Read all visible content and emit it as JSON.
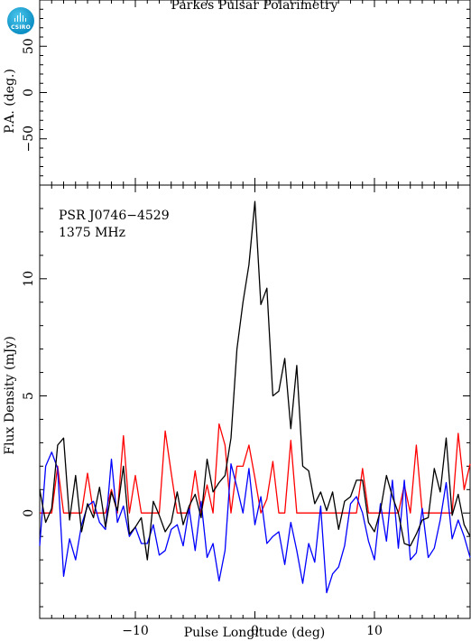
{
  "header": {
    "title": "Parkes Pulsar Polarimetry",
    "logo_text": "CSIRO"
  },
  "colors": {
    "total_intensity": "#000000",
    "linear_pol": "#ff0000",
    "circular_pol": "#0000ff"
  },
  "chart_data": [
    {
      "type": "scatter",
      "panel": "position-angle",
      "ylabel": "P.A. (deg.)",
      "xlim": [
        -18,
        18
      ],
      "ylim": [
        -100,
        100
      ],
      "yticks": [
        -50,
        0,
        50
      ],
      "points": []
    },
    {
      "type": "line",
      "panel": "flux-density",
      "annotations": [
        "PSR J0746−4529",
        "1375 MHz"
      ],
      "xlabel": "Pulse Longitude (deg)",
      "ylabel": "Flux Density (mJy)",
      "xlim": [
        -18,
        18
      ],
      "ylim": [
        -4.5,
        14
      ],
      "xticks": [
        -10,
        0,
        10
      ],
      "yticks": [
        0,
        5,
        10
      ],
      "series": [
        {
          "color": "#000000",
          "x": [
            -18,
            -17.5,
            -17,
            -16.5,
            -16,
            -15.5,
            -15,
            -14.5,
            -14,
            -13.5,
            -13,
            -12.5,
            -12,
            -11.5,
            -11,
            -10.5,
            -10,
            -9.5,
            -9,
            -8.5,
            -8,
            -7.5,
            -7,
            -6.5,
            -6,
            -5.5,
            -5,
            -4.5,
            -4,
            -3.5,
            -3,
            -2.5,
            -2,
            -1.5,
            -1,
            -0.5,
            0,
            0.5,
            1,
            1.5,
            2,
            2.5,
            3,
            3.5,
            4,
            4.5,
            5,
            5.5,
            6,
            6.5,
            7,
            7.5,
            8,
            8.5,
            9,
            9.5,
            10,
            10.5,
            11,
            11.5,
            12,
            12.5,
            13,
            13.5,
            14,
            14.5,
            15,
            15.5,
            16,
            16.5,
            17,
            17.5,
            18
          ],
          "y": [
            1.0,
            -0.4,
            0.2,
            2.9,
            3.2,
            -0.3,
            1.6,
            -0.8,
            0.4,
            -0.2,
            1.1,
            -0.6,
            0.9,
            0.1,
            2.0,
            -0.9,
            -0.6,
            -0.2,
            -2.0,
            0.5,
            -0.1,
            -0.8,
            -0.4,
            0.9,
            -0.5,
            0.3,
            0.8,
            -0.2,
            2.3,
            0.9,
            1.3,
            1.6,
            3.2,
            7.0,
            9.0,
            10.6,
            13.3,
            8.9,
            9.6,
            5.0,
            5.2,
            6.6,
            3.6,
            6.3,
            2.0,
            1.8,
            0.4,
            0.9,
            0.1,
            0.9,
            -0.7,
            0.5,
            0.7,
            1.4,
            1.4,
            -0.4,
            -0.8,
            0.1,
            1.6,
            0.7,
            0.0,
            -1.3,
            -1.4,
            -0.9,
            -0.3,
            -0.2,
            1.9,
            0.9,
            3.2,
            -0.1,
            0.8,
            -0.5,
            -1.0
          ]
        },
        {
          "color": "#ff0000",
          "x": [
            -18,
            -17.5,
            -17,
            -16.5,
            -16,
            -15.5,
            -15,
            -14.5,
            -14,
            -13.5,
            -13,
            -12.5,
            -12,
            -11.5,
            -11,
            -10.5,
            -10,
            -9.5,
            -9,
            -8.5,
            -8,
            -7.5,
            -7,
            -6.5,
            -6,
            -5.5,
            -5,
            -4.5,
            -4,
            -3.5,
            -3,
            -2.5,
            -2,
            -1.5,
            -1,
            -0.5,
            0,
            0.5,
            1,
            1.5,
            2,
            2.5,
            3,
            3.5,
            4,
            4.5,
            5,
            5.5,
            6,
            6.5,
            7,
            7.5,
            8,
            8.5,
            9,
            9.5,
            10,
            10.5,
            11,
            11.5,
            12,
            12.5,
            13,
            13.5,
            14,
            14.5,
            15,
            15.5,
            16,
            16.5,
            17,
            17.5,
            18
          ],
          "y": [
            0,
            0,
            0,
            2.0,
            0,
            0,
            0,
            0,
            1.7,
            0,
            0,
            0,
            1.0,
            0,
            3.3,
            0,
            1.6,
            0,
            0,
            0,
            0,
            3.5,
            1.7,
            0,
            0,
            0,
            1.8,
            0,
            1.2,
            0,
            3.8,
            2.9,
            0,
            2.0,
            2.0,
            2.9,
            1.5,
            0,
            0.6,
            2.2,
            0,
            0,
            3.1,
            0,
            0,
            0,
            0,
            0,
            0,
            0,
            0,
            0,
            0,
            0,
            1.9,
            0,
            0,
            0,
            0,
            0,
            0,
            1.2,
            0,
            2.9,
            0,
            0,
            0,
            0,
            0,
            0,
            3.4,
            1.0,
            2.1
          ]
        },
        {
          "color": "#0000ff",
          "x": [
            -18,
            -17.5,
            -17,
            -16.5,
            -16,
            -15.5,
            -15,
            -14.5,
            -14,
            -13.5,
            -13,
            -12.5,
            -12,
            -11.5,
            -11,
            -10.5,
            -10,
            -9.5,
            -9,
            -8.5,
            -8,
            -7.5,
            -7,
            -6.5,
            -6,
            -5.5,
            -5,
            -4.5,
            -4,
            -3.5,
            -3,
            -2.5,
            -2,
            -1.5,
            -1,
            -0.5,
            0,
            0.5,
            1,
            1.5,
            2,
            2.5,
            3,
            3.5,
            4,
            4.5,
            5,
            5.5,
            6,
            6.5,
            7,
            7.5,
            8,
            8.5,
            9,
            9.5,
            10,
            10.5,
            11,
            11.5,
            12,
            12.5,
            13,
            13.5,
            14,
            14.5,
            15,
            15.5,
            16,
            16.5,
            17,
            17.5,
            18
          ],
          "y": [
            -1.4,
            2.0,
            2.6,
            1.9,
            -2.7,
            -1.1,
            -2.0,
            -0.5,
            0.3,
            0.5,
            -0.4,
            -0.7,
            2.3,
            -0.4,
            0.3,
            -1.0,
            -0.6,
            -1.3,
            -1.3,
            -0.5,
            -1.8,
            -1.6,
            -0.7,
            -0.5,
            -1.4,
            0.2,
            -1.6,
            0.5,
            -1.9,
            -1.3,
            -2.9,
            -1.6,
            2.1,
            1.1,
            0.0,
            1.9,
            -0.5,
            0.7,
            -1.3,
            -1.0,
            -0.8,
            -2.2,
            -0.4,
            -1.6,
            -3.0,
            -1.3,
            -2.1,
            0.3,
            -3.4,
            -2.6,
            -2.3,
            -1.4,
            0.4,
            0.7,
            0.0,
            -1.2,
            -2.0,
            0.4,
            -1.2,
            1.4,
            -1.5,
            1.4,
            -2.0,
            -1.7,
            0.2,
            -1.9,
            -1.5,
            -0.3,
            1.3,
            -1.1,
            -0.3,
            -1.0,
            -1.9
          ]
        }
      ]
    }
  ]
}
